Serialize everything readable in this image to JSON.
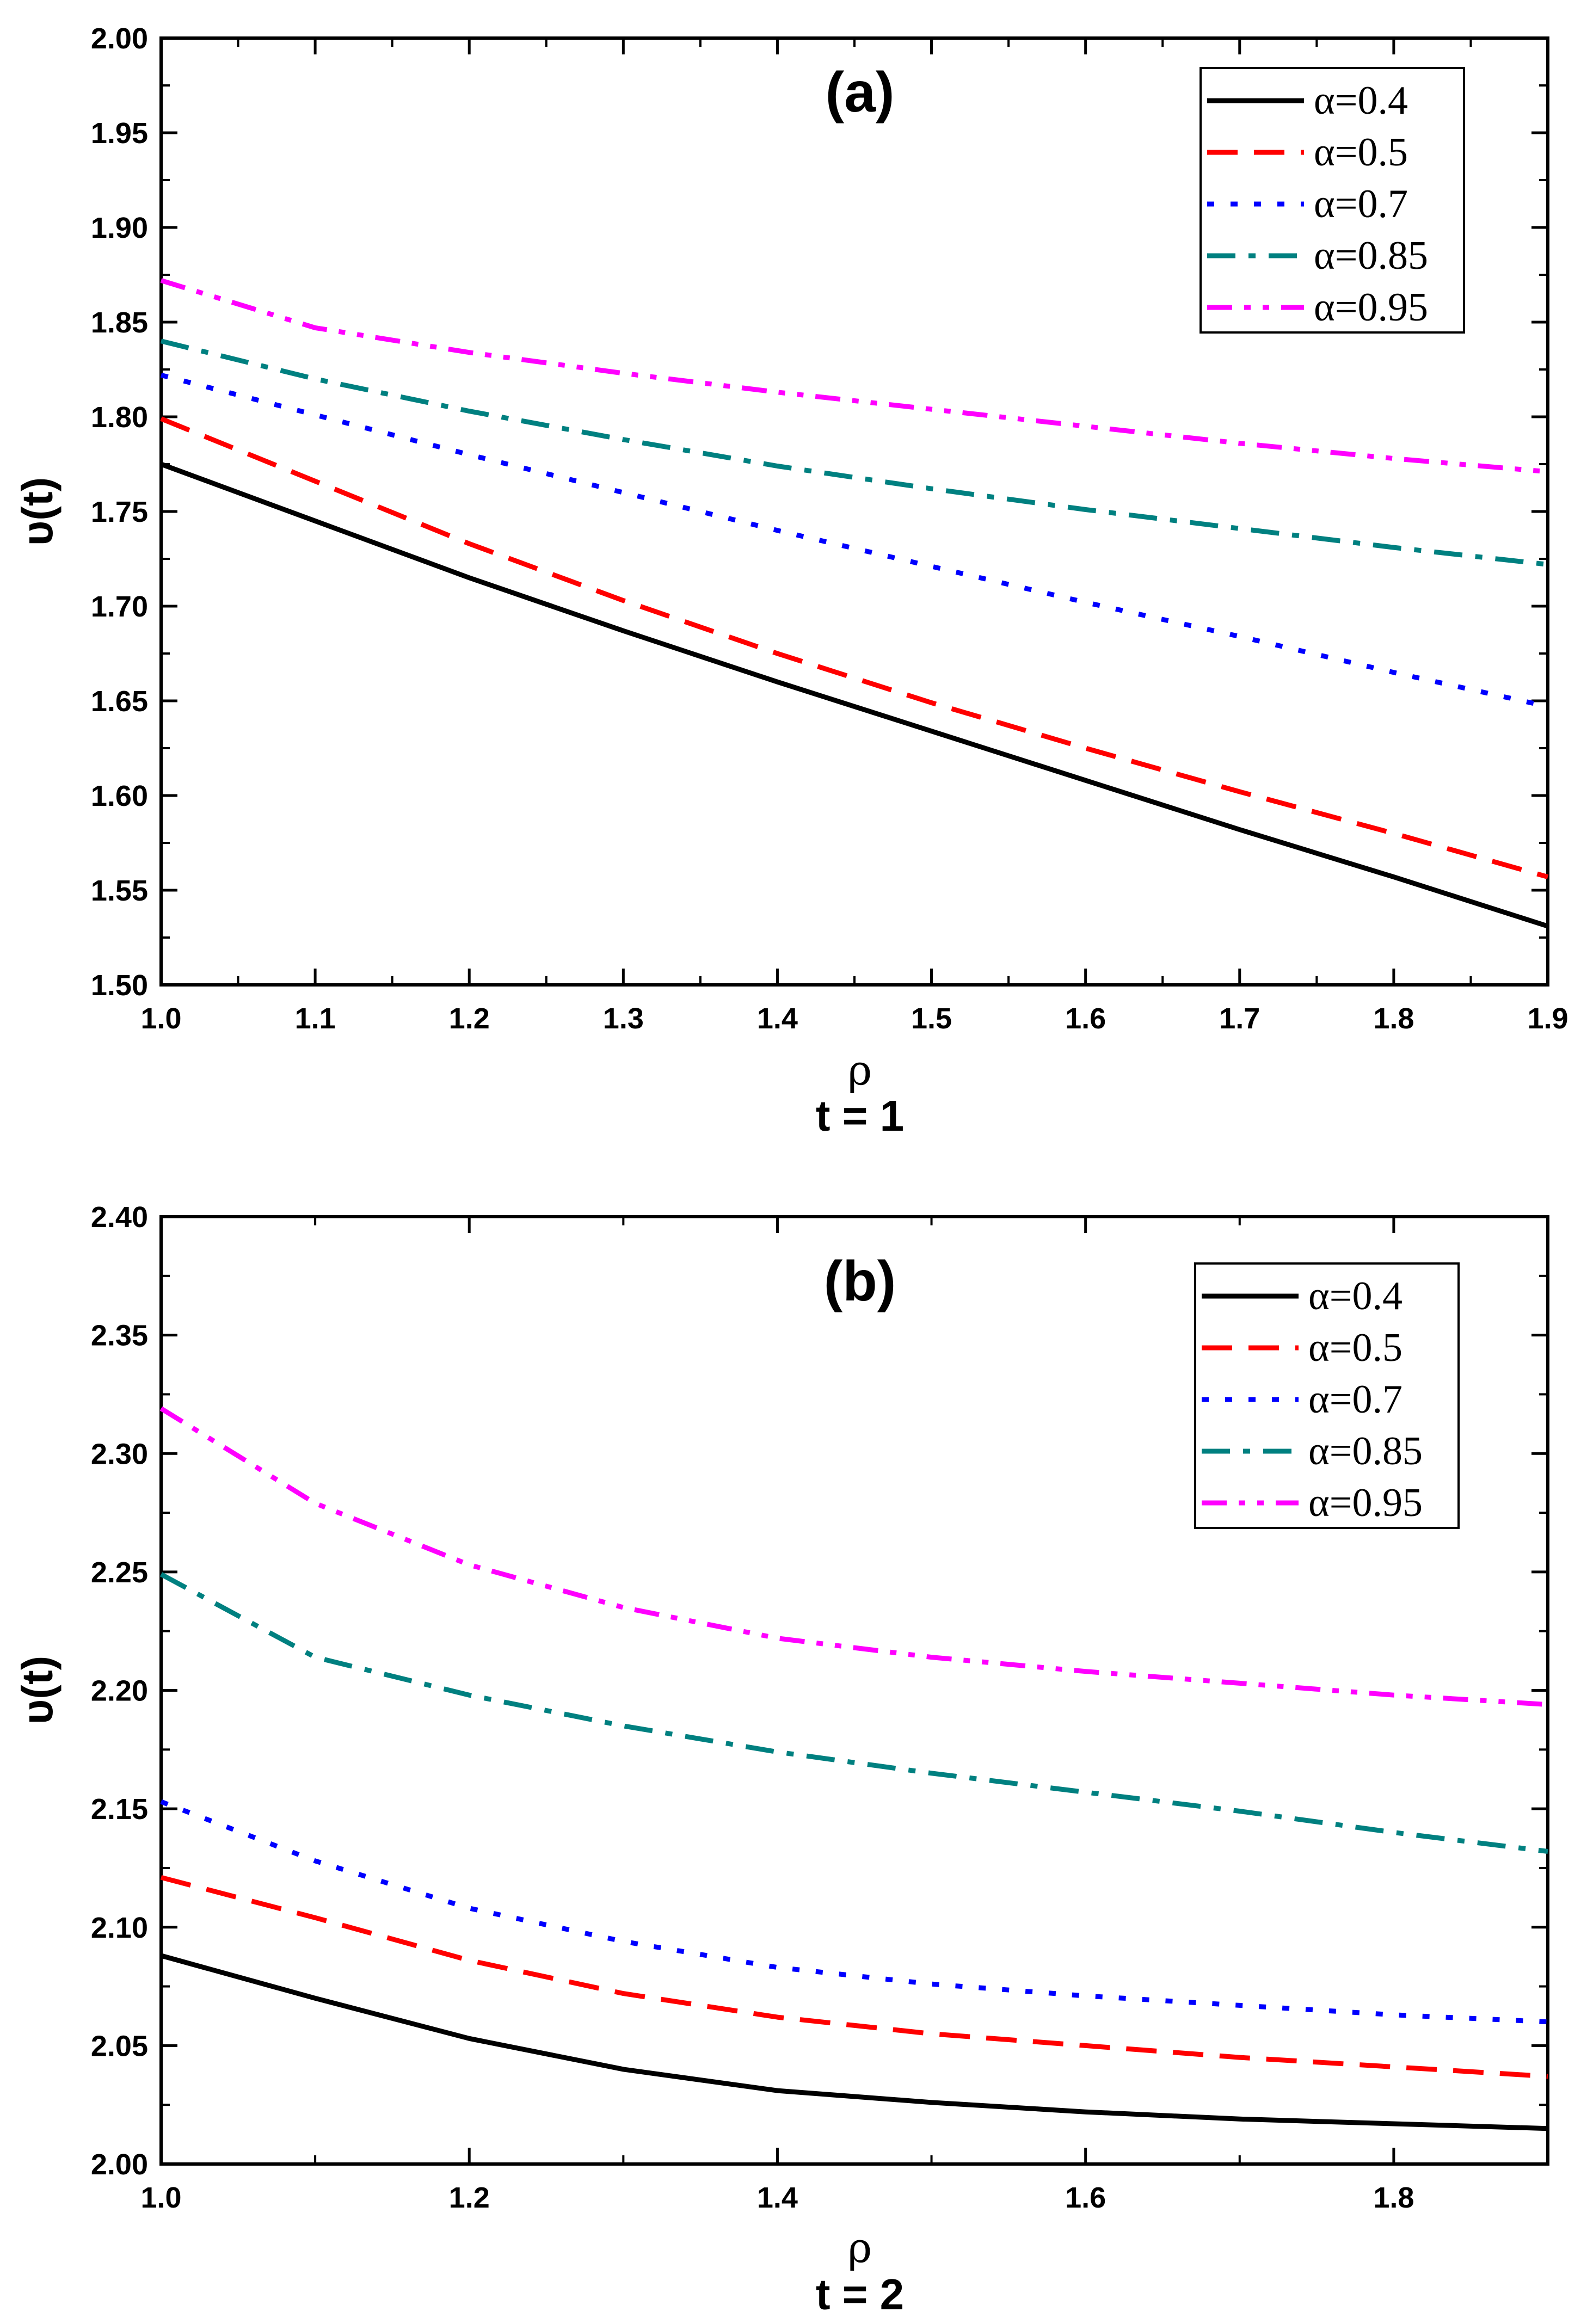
{
  "chart_data": [
    {
      "type": "line",
      "panel_label": "(a)",
      "xlabel": "ρ",
      "caption": "t = 1",
      "ylabel": "υ(t)",
      "xlim": [
        1.0,
        1.9
      ],
      "ylim": [
        1.5,
        2.0
      ],
      "xticks": [
        1.0,
        1.1,
        1.2,
        1.3,
        1.4,
        1.5,
        1.6,
        1.7,
        1.8,
        1.9
      ],
      "xtick_labels": [
        "1.0",
        "1.1",
        "1.2",
        "1.3",
        "1.4",
        "1.5",
        "1.6",
        "1.7",
        "1.8",
        "1.9"
      ],
      "yticks": [
        1.5,
        1.55,
        1.6,
        1.65,
        1.7,
        1.75,
        1.8,
        1.85,
        1.9,
        1.95,
        2.0
      ],
      "ytick_labels": [
        "1.50",
        "1.55",
        "1.60",
        "1.65",
        "1.70",
        "1.75",
        "1.80",
        "1.85",
        "1.90",
        "1.95",
        "2.00"
      ],
      "legend_position": "top-right",
      "x": [
        1.0,
        1.1,
        1.2,
        1.3,
        1.4,
        1.5,
        1.6,
        1.7,
        1.8,
        1.9
      ],
      "series": [
        {
          "name": "α=0.4",
          "color": "#000000",
          "style": "solid",
          "values": [
            1.775,
            1.745,
            1.715,
            1.687,
            1.66,
            1.634,
            1.608,
            1.582,
            1.557,
            1.531
          ]
        },
        {
          "name": "α=0.5",
          "color": "#ff0000",
          "style": "dash",
          "values": [
            1.799,
            1.766,
            1.733,
            1.703,
            1.675,
            1.649,
            1.625,
            1.602,
            1.58,
            1.557
          ]
        },
        {
          "name": "α=0.7",
          "color": "#0000ff",
          "style": "dot",
          "values": [
            1.822,
            1.801,
            1.78,
            1.76,
            1.74,
            1.721,
            1.702,
            1.684,
            1.665,
            1.647
          ]
        },
        {
          "name": "α=0.85",
          "color": "#008080",
          "style": "dashdot",
          "values": [
            1.84,
            1.82,
            1.803,
            1.788,
            1.774,
            1.762,
            1.751,
            1.741,
            1.731,
            1.722
          ]
        },
        {
          "name": "α=0.95",
          "color": "#ff00ff",
          "style": "dashdotdot",
          "values": [
            1.872,
            1.847,
            1.834,
            1.823,
            1.813,
            1.804,
            1.795,
            1.786,
            1.778,
            1.771
          ]
        }
      ]
    },
    {
      "type": "line",
      "panel_label": "(b)",
      "xlabel": "ρ",
      "caption": "t = 2",
      "ylabel": "υ(t)",
      "xlim": [
        1.0,
        1.9
      ],
      "ylim": [
        2.0,
        2.4
      ],
      "xticks": [
        1.0,
        1.2,
        1.4,
        1.6,
        1.8
      ],
      "xtick_labels": [
        "1.0",
        "1.2",
        "1.4",
        "1.6",
        "1.8"
      ],
      "yticks": [
        2.0,
        2.05,
        2.1,
        2.15,
        2.2,
        2.25,
        2.3,
        2.35,
        2.4
      ],
      "ytick_labels": [
        "2.00",
        "2.05",
        "2.10",
        "2.15",
        "2.20",
        "2.25",
        "2.30",
        "2.35",
        "2.40"
      ],
      "legend_position": "top-right",
      "x": [
        1.0,
        1.1,
        1.2,
        1.3,
        1.4,
        1.5,
        1.6,
        1.7,
        1.8,
        1.9
      ],
      "series": [
        {
          "name": "α=0.4",
          "color": "#000000",
          "style": "solid",
          "values": [
            2.088,
            2.07,
            2.053,
            2.04,
            2.031,
            2.026,
            2.022,
            2.019,
            2.017,
            2.015
          ]
        },
        {
          "name": "α=0.5",
          "color": "#ff0000",
          "style": "dash",
          "values": [
            2.121,
            2.104,
            2.086,
            2.072,
            2.062,
            2.055,
            2.05,
            2.045,
            2.041,
            2.037
          ]
        },
        {
          "name": "α=0.7",
          "color": "#0000ff",
          "style": "dot",
          "values": [
            2.153,
            2.128,
            2.108,
            2.094,
            2.083,
            2.076,
            2.071,
            2.067,
            2.063,
            2.06
          ]
        },
        {
          "name": "α=0.85",
          "color": "#008080",
          "style": "dashdot",
          "values": [
            2.249,
            2.214,
            2.198,
            2.185,
            2.174,
            2.165,
            2.157,
            2.149,
            2.14,
            2.132
          ]
        },
        {
          "name": "α=0.95",
          "color": "#ff00ff",
          "style": "dashdotdot",
          "values": [
            2.319,
            2.279,
            2.253,
            2.235,
            2.222,
            2.214,
            2.208,
            2.203,
            2.198,
            2.194
          ]
        }
      ]
    }
  ]
}
